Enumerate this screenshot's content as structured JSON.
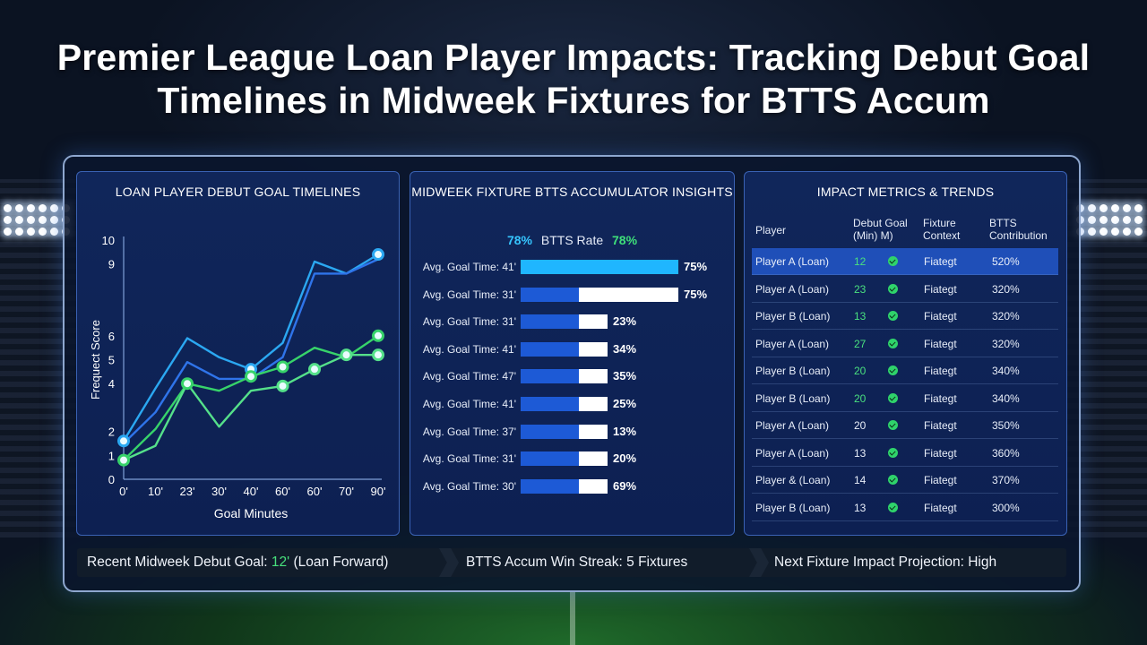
{
  "page": {
    "title": "Premier League Loan Player Impacts: Tracking Debut Goal Timelines in Midweek Fixtures for BTTS Accum"
  },
  "panels": {
    "timeline_title": "LOAN PLAYER DEBUT GOAL TIMELINES",
    "insights_title": "MIDWEEK FIXTURE BTTS ACCUMULATOR INSIGHTS",
    "metrics_title": "IMPACT METRICS & TRENDS"
  },
  "chart_data": [
    {
      "type": "line",
      "title": "LOAN PLAYER DEBUT GOAL TIMELINES",
      "xlabel": "Goal Minutes",
      "ylabel": "Frequect Score",
      "x": [
        "0'",
        "10'",
        "23'",
        "30'",
        "40'",
        "60'",
        "60'",
        "70'",
        "90'"
      ],
      "y_ticks": [
        0,
        1,
        2,
        4,
        5,
        6,
        9,
        10
      ],
      "ylim": [
        0,
        10
      ],
      "grid": false,
      "series": [
        {
          "color": "#2ba8f2",
          "values": [
            1.6,
            3.8,
            5.9,
            5.1,
            4.6,
            5.7,
            9.1,
            8.6,
            9.4
          ],
          "markers": [
            0,
            4,
            8
          ]
        },
        {
          "color": "#2f74ea",
          "values": [
            1.5,
            2.8,
            4.9,
            4.2,
            4.2,
            5.1,
            8.6,
            8.6,
            9.2
          ],
          "markers": []
        },
        {
          "color": "#37d36a",
          "values": [
            0.8,
            2.1,
            4.0,
            3.7,
            4.3,
            4.7,
            5.5,
            5.1,
            6.0
          ],
          "markers": [
            0,
            2,
            4,
            5,
            8
          ]
        },
        {
          "color": "#55e08a",
          "values": [
            0.8,
            1.4,
            4.0,
            2.2,
            3.7,
            3.9,
            4.6,
            5.2,
            5.2
          ],
          "markers": [
            5,
            6,
            7,
            8
          ]
        }
      ]
    },
    {
      "type": "bar",
      "title": "MIDWEEK FIXTURE BTTS ACCUMULATOR INSIGHTS",
      "headline": {
        "left": "78%",
        "label": "BTTS Rate",
        "right": "78%"
      },
      "categories": [
        "Avg. Goal Time: 41'",
        "Avg. Goal Time: 31'",
        "Avg. Goal Time: 31'",
        "Avg. Goal Time: 41'",
        "Avg. Goal Time: 47'",
        "Avg. Goal Time: 41'",
        "Avg. Goal Time: 37'",
        "Avg. Goal Time: 31'",
        "Avg. Goal Time: 30'"
      ],
      "values": [
        75,
        75,
        23,
        34,
        35,
        25,
        13,
        20,
        69
      ],
      "labels": [
        "75%",
        "75%",
        "23%",
        "34%",
        "35%",
        "25%",
        "13%",
        "20%",
        "69%"
      ],
      "colors": {
        "highlight": "#1fb6ff",
        "blue": "#1d5ad6",
        "white": "#ffffff"
      }
    }
  ],
  "metrics": {
    "headers": {
      "player": "Player",
      "debut_goal": [
        "Debut Goal",
        "(Min) M)"
      ],
      "context": [
        "Fixture",
        "Context"
      ],
      "contribution": [
        "BTTS",
        "Contribution"
      ]
    },
    "rows": [
      {
        "player": "Player A (Loan)",
        "min": "12",
        "green": true,
        "context": "Fiategt",
        "contribution": "520%"
      },
      {
        "player": "Player A (Loan)",
        "min": "23",
        "green": true,
        "context": "Fiategt",
        "contribution": "320%"
      },
      {
        "player": "Player B (Loan)",
        "min": "13",
        "green": true,
        "context": "Fiategt",
        "contribution": "320%"
      },
      {
        "player": "Player A (Loan)",
        "min": "27",
        "green": true,
        "context": "Fiategt",
        "contribution": "320%"
      },
      {
        "player": "Player B (Loan)",
        "min": "20",
        "green": true,
        "context": "Fiategt",
        "contribution": "340%"
      },
      {
        "player": "Player B (Loan)",
        "min": "20",
        "green": true,
        "context": "Fiategt",
        "contribution": "340%"
      },
      {
        "player": "Player A (Loan)",
        "min": "20",
        "green": false,
        "context": "Fiategt",
        "contribution": "350%"
      },
      {
        "player": "Player A (Loan)",
        "min": "13",
        "green": false,
        "context": "Fiategt",
        "contribution": "360%"
      },
      {
        "player": "Player & (Loan)",
        "min": "14",
        "green": false,
        "context": "Fiategt",
        "contribution": "370%"
      },
      {
        "player": "Player B (Loan)",
        "min": "13",
        "green": false,
        "context": "Fiategt",
        "contribution": "300%"
      }
    ],
    "selected_row": 0
  },
  "footer": {
    "recent_label": "Recent Midweek Debut Goal:",
    "recent_value": "12'",
    "recent_suffix": "(Loan Forward)",
    "streak": "BTTS Accum Win Streak:  5 Fixtures",
    "projection": "Next Fixture  Impact Projection:  High"
  }
}
